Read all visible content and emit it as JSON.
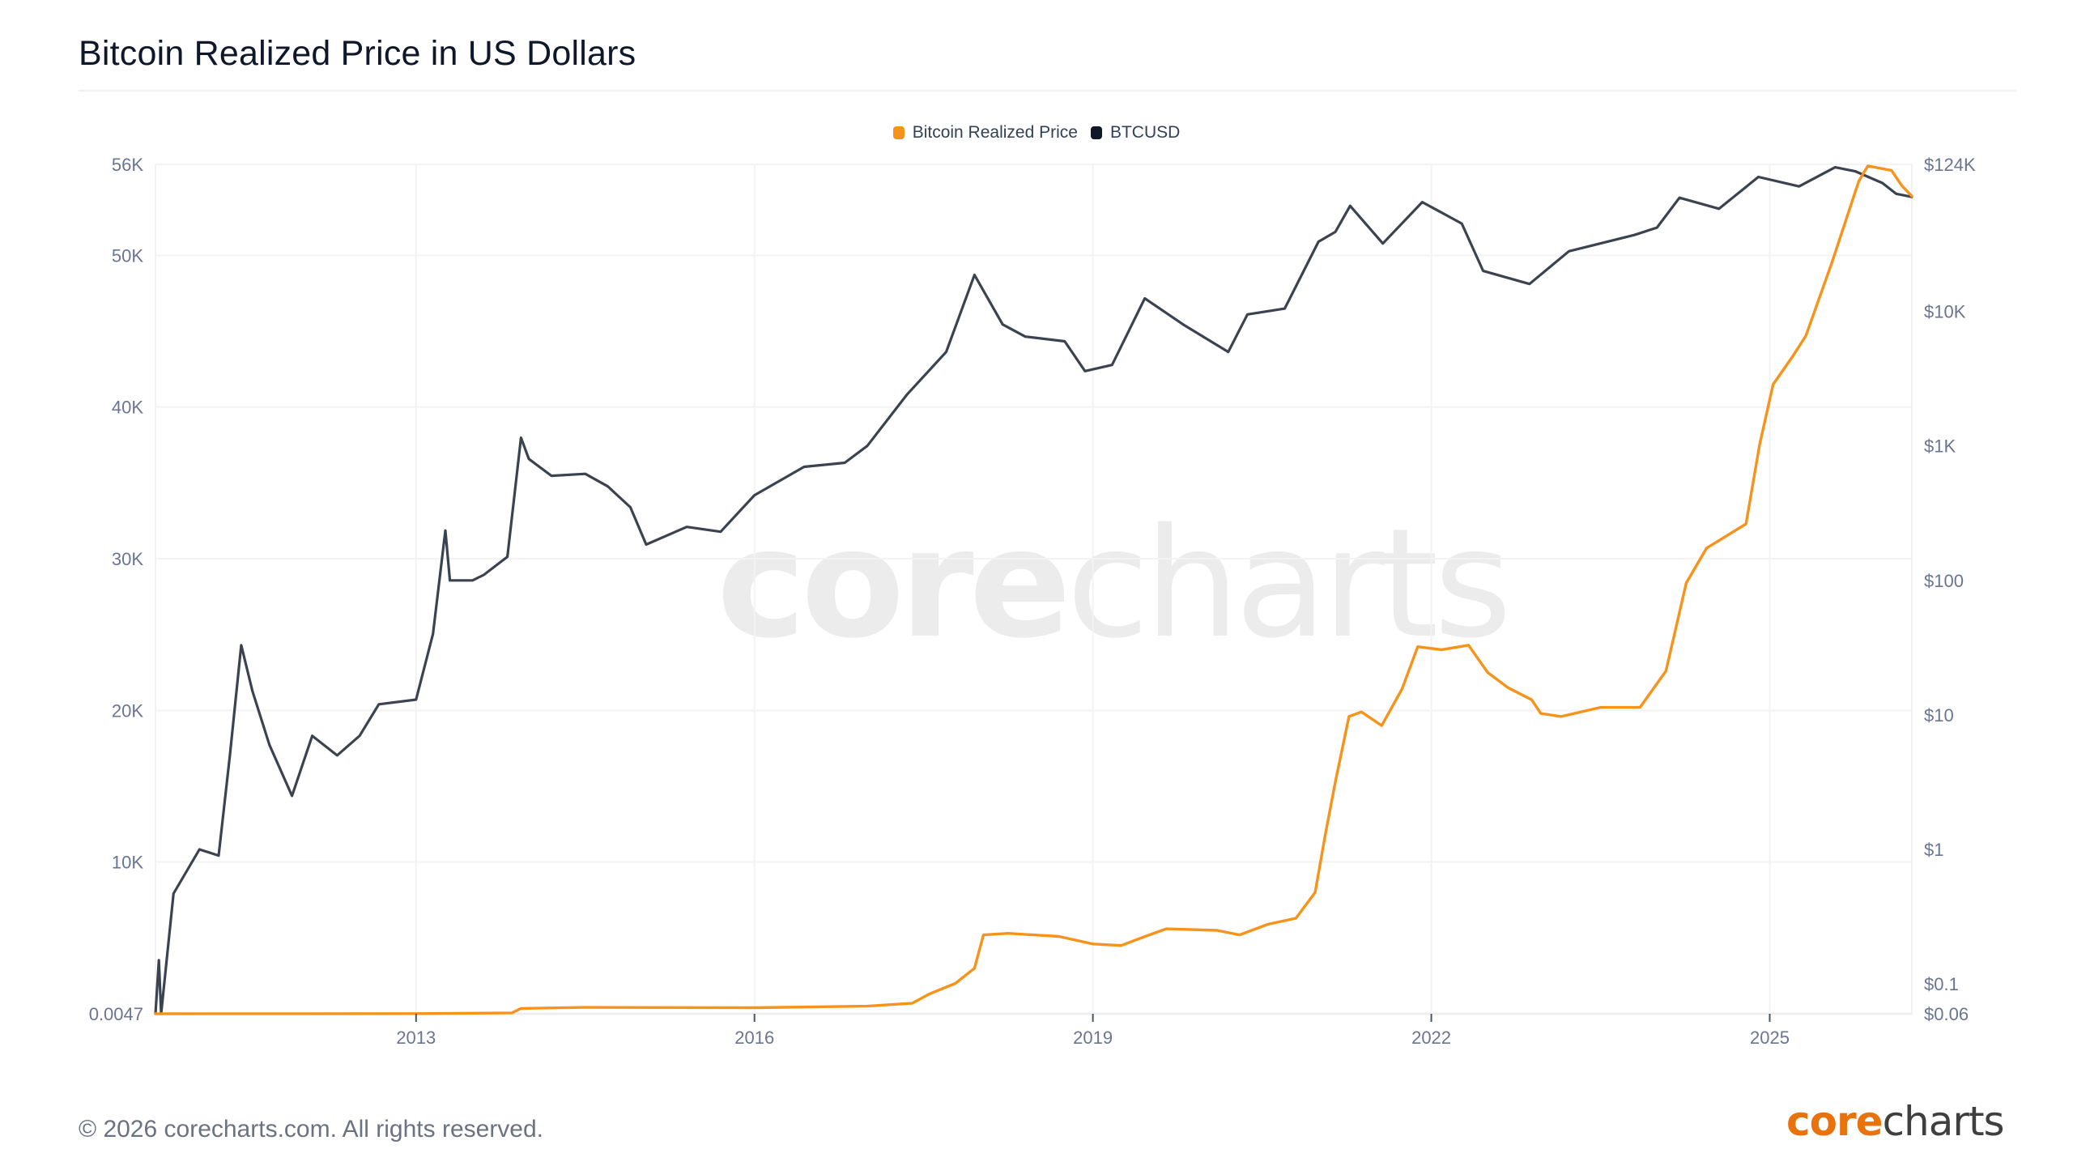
{
  "header": {
    "title": "Bitcoin Realized Price in US Dollars"
  },
  "footer": {
    "copyright": "© 2026 corecharts.com. All rights reserved."
  },
  "brand": {
    "logo_part1": "core",
    "logo_part2": "charts",
    "watermark_part1": "core",
    "watermark_part2": "charts",
    "accent_color": "#e8720c",
    "dark_color": "#3f3f3f"
  },
  "chart_data": {
    "type": "line",
    "title": "Bitcoin Realized Price in US Dollars",
    "legend": {
      "placement": "top-center",
      "entries": [
        {
          "name": "Bitcoin Realized Price",
          "color": "#f7931a"
        },
        {
          "name": "BTCUSD",
          "color": "#111827"
        }
      ]
    },
    "grid": true,
    "x_axis": {
      "type": "time",
      "range": [
        2010.69,
        2026.26
      ],
      "ticks": [
        2013,
        2016,
        2019,
        2022,
        2025
      ],
      "tick_labels": [
        "2013",
        "2016",
        "2019",
        "2022",
        "2025"
      ]
    },
    "y_left": {
      "scale": "linear",
      "range": [
        0.0047,
        56000
      ],
      "ticks": [
        0.0047,
        10000,
        20000,
        30000,
        40000,
        50000,
        56000
      ],
      "tick_labels": [
        "0.0047",
        "10K",
        "20K",
        "30K",
        "40K",
        "50K",
        "56K"
      ]
    },
    "y_right": {
      "scale": "log",
      "range": [
        0.06,
        124000
      ],
      "ticks": [
        0.06,
        0.1,
        1,
        10,
        100,
        1000,
        10000,
        124000
      ],
      "tick_labels": [
        "$0.06",
        "$0.1",
        "$1",
        "$10",
        "$100",
        "$1K",
        "$10K",
        "$124K"
      ]
    },
    "series": [
      {
        "name": "Bitcoin Realized Price",
        "axis": "left",
        "color": "#f7931a",
        "points": [
          [
            2010.69,
            0.0047
          ],
          [
            2012.0,
            4
          ],
          [
            2013.0,
            10
          ],
          [
            2013.85,
            60
          ],
          [
            2013.93,
            350
          ],
          [
            2014.5,
            420
          ],
          [
            2016.0,
            400
          ],
          [
            2017.0,
            500
          ],
          [
            2017.4,
            700
          ],
          [
            2017.55,
            1300
          ],
          [
            2017.78,
            2000
          ],
          [
            2017.95,
            3000
          ],
          [
            2018.03,
            5200
          ],
          [
            2018.25,
            5300
          ],
          [
            2018.7,
            5100
          ],
          [
            2019.0,
            4600
          ],
          [
            2019.25,
            4500
          ],
          [
            2019.5,
            5200
          ],
          [
            2019.65,
            5600
          ],
          [
            2020.1,
            5500
          ],
          [
            2020.3,
            5200
          ],
          [
            2020.55,
            5900
          ],
          [
            2020.8,
            6300
          ],
          [
            2020.97,
            8000
          ],
          [
            2021.06,
            11800
          ],
          [
            2021.15,
            15300
          ],
          [
            2021.27,
            19600
          ],
          [
            2021.38,
            19900
          ],
          [
            2021.56,
            19000
          ],
          [
            2021.74,
            21400
          ],
          [
            2021.88,
            24200
          ],
          [
            2022.09,
            24000
          ],
          [
            2022.33,
            24300
          ],
          [
            2022.5,
            22500
          ],
          [
            2022.68,
            21500
          ],
          [
            2022.89,
            20700
          ],
          [
            2022.97,
            19800
          ],
          [
            2023.15,
            19600
          ],
          [
            2023.5,
            20200
          ],
          [
            2023.85,
            20200
          ],
          [
            2024.08,
            22600
          ],
          [
            2024.26,
            28400
          ],
          [
            2024.44,
            30700
          ],
          [
            2024.79,
            32300
          ],
          [
            2024.91,
            37500
          ],
          [
            2025.03,
            41500
          ],
          [
            2025.2,
            43300
          ],
          [
            2025.32,
            44700
          ],
          [
            2025.55,
            49500
          ],
          [
            2025.79,
            54900
          ],
          [
            2025.87,
            55900
          ],
          [
            2026.08,
            55600
          ],
          [
            2026.17,
            54600
          ],
          [
            2026.26,
            53900
          ]
        ]
      },
      {
        "name": "BTCUSD",
        "axis": "right",
        "color": "#111827",
        "points": [
          [
            2010.69,
            0.06
          ],
          [
            2010.72,
            0.15
          ],
          [
            2010.74,
            0.06
          ],
          [
            2010.85,
            0.47
          ],
          [
            2011.08,
            1.0
          ],
          [
            2011.25,
            0.9
          ],
          [
            2011.35,
            5
          ],
          [
            2011.45,
            33
          ],
          [
            2011.55,
            15
          ],
          [
            2011.7,
            6
          ],
          [
            2011.9,
            2.5
          ],
          [
            2012.08,
            7
          ],
          [
            2012.3,
            5
          ],
          [
            2012.5,
            7
          ],
          [
            2012.67,
            12
          ],
          [
            2013.0,
            13
          ],
          [
            2013.15,
            40
          ],
          [
            2013.26,
            235
          ],
          [
            2013.3,
            100
          ],
          [
            2013.5,
            100
          ],
          [
            2013.6,
            110
          ],
          [
            2013.81,
            150
          ],
          [
            2013.93,
            1150
          ],
          [
            2014.0,
            800
          ],
          [
            2014.2,
            600
          ],
          [
            2014.5,
            620
          ],
          [
            2014.7,
            500
          ],
          [
            2014.9,
            350
          ],
          [
            2015.04,
            185
          ],
          [
            2015.4,
            250
          ],
          [
            2015.7,
            230
          ],
          [
            2016.0,
            430
          ],
          [
            2016.44,
            700
          ],
          [
            2016.8,
            750
          ],
          [
            2017.0,
            1000
          ],
          [
            2017.35,
            2400
          ],
          [
            2017.7,
            5000
          ],
          [
            2017.95,
            18700
          ],
          [
            2018.2,
            8000
          ],
          [
            2018.4,
            6500
          ],
          [
            2018.75,
            6000
          ],
          [
            2018.93,
            3600
          ],
          [
            2019.17,
            4000
          ],
          [
            2019.46,
            12500
          ],
          [
            2019.8,
            8000
          ],
          [
            2020.2,
            5000
          ],
          [
            2020.37,
            9500
          ],
          [
            2020.7,
            10500
          ],
          [
            2021.0,
            33000
          ],
          [
            2021.15,
            39000
          ],
          [
            2021.28,
            61000
          ],
          [
            2021.57,
            32000
          ],
          [
            2021.92,
            65000
          ],
          [
            2022.27,
            45000
          ],
          [
            2022.46,
            20000
          ],
          [
            2022.87,
            16000
          ],
          [
            2023.22,
            28000
          ],
          [
            2023.8,
            37000
          ],
          [
            2024.0,
            42000
          ],
          [
            2024.2,
            70000
          ],
          [
            2024.55,
            58000
          ],
          [
            2024.9,
            100000
          ],
          [
            2025.26,
            85000
          ],
          [
            2025.58,
            118000
          ],
          [
            2025.76,
            110000
          ],
          [
            2026.0,
            90000
          ],
          [
            2026.12,
            75000
          ],
          [
            2026.26,
            71000
          ]
        ]
      }
    ]
  }
}
